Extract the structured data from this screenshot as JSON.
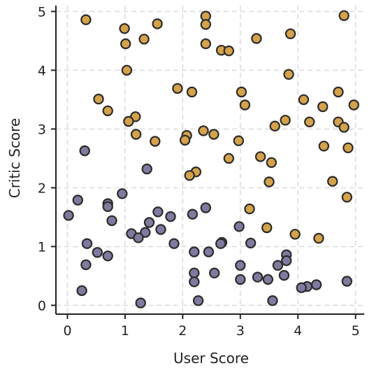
{
  "chart_data": {
    "type": "scatter",
    "xlabel": "User Score",
    "ylabel": "Critic Score",
    "xlim": [
      -0.2,
      5.15
    ],
    "ylim": [
      -0.15,
      5.1
    ],
    "xticks": [
      0,
      1,
      2,
      3,
      4,
      5
    ],
    "yticks": [
      0,
      1,
      2,
      3,
      4,
      5
    ],
    "grid": true,
    "colors": {
      "high": "#d4a24c",
      "low": "#7f7b9f"
    },
    "series": [
      {
        "color_key": "high",
        "points": [
          [
            0.32,
            4.86
          ],
          [
            0.99,
            4.71
          ],
          [
            1.01,
            4.45
          ],
          [
            1.33,
            4.53
          ],
          [
            1.56,
            4.79
          ],
          [
            2.4,
            4.92
          ],
          [
            2.4,
            4.78
          ],
          [
            2.4,
            4.45
          ],
          [
            2.67,
            4.34
          ],
          [
            2.8,
            4.33
          ],
          [
            3.28,
            4.54
          ],
          [
            3.87,
            4.62
          ],
          [
            4.8,
            4.93
          ],
          [
            1.03,
            4.0
          ],
          [
            3.84,
            3.93
          ],
          [
            1.91,
            3.69
          ],
          [
            2.16,
            3.63
          ],
          [
            3.02,
            3.63
          ],
          [
            4.7,
            3.63
          ],
          [
            0.54,
            3.51
          ],
          [
            4.1,
            3.5
          ],
          [
            3.08,
            3.41
          ],
          [
            4.97,
            3.41
          ],
          [
            4.43,
            3.38
          ],
          [
            0.7,
            3.31
          ],
          [
            1.18,
            3.21
          ],
          [
            1.06,
            3.13
          ],
          [
            3.78,
            3.15
          ],
          [
            4.2,
            3.12
          ],
          [
            4.7,
            3.12
          ],
          [
            3.6,
            3.05
          ],
          [
            4.8,
            3.03
          ],
          [
            2.36,
            2.97
          ],
          [
            2.54,
            2.91
          ],
          [
            1.19,
            2.91
          ],
          [
            2.07,
            2.89
          ],
          [
            2.04,
            2.81
          ],
          [
            1.52,
            2.79
          ],
          [
            2.97,
            2.8
          ],
          [
            4.45,
            2.71
          ],
          [
            4.87,
            2.68
          ],
          [
            3.35,
            2.53
          ],
          [
            2.8,
            2.5
          ],
          [
            3.54,
            2.43
          ],
          [
            2.23,
            2.27
          ],
          [
            2.12,
            2.21
          ],
          [
            3.5,
            2.1
          ],
          [
            4.6,
            2.11
          ],
          [
            4.85,
            1.84
          ],
          [
            3.16,
            1.64
          ],
          [
            3.46,
            1.32
          ],
          [
            3.95,
            1.21
          ],
          [
            4.36,
            1.14
          ]
        ]
      },
      {
        "color_key": "low",
        "points": [
          [
            0.3,
            2.63
          ],
          [
            1.38,
            2.32
          ],
          [
            0.95,
            1.9
          ],
          [
            0.18,
            1.79
          ],
          [
            0.7,
            1.73
          ],
          [
            0.7,
            1.68
          ],
          [
            0.02,
            1.53
          ],
          [
            1.57,
            1.59
          ],
          [
            1.79,
            1.51
          ],
          [
            2.17,
            1.55
          ],
          [
            2.4,
            1.66
          ],
          [
            0.77,
            1.44
          ],
          [
            1.42,
            1.41
          ],
          [
            1.62,
            1.29
          ],
          [
            1.11,
            1.22
          ],
          [
            1.35,
            1.24
          ],
          [
            1.23,
            1.15
          ],
          [
            2.98,
            1.34
          ],
          [
            0.34,
            1.05
          ],
          [
            1.85,
            1.05
          ],
          [
            2.68,
            1.07
          ],
          [
            2.66,
            1.05
          ],
          [
            3.18,
            1.06
          ],
          [
            0.52,
            0.9
          ],
          [
            2.2,
            0.91
          ],
          [
            2.45,
            0.91
          ],
          [
            0.7,
            0.84
          ],
          [
            3.8,
            0.86
          ],
          [
            3.8,
            0.76
          ],
          [
            0.32,
            0.69
          ],
          [
            3.0,
            0.68
          ],
          [
            3.65,
            0.68
          ],
          [
            2.2,
            0.55
          ],
          [
            2.55,
            0.55
          ],
          [
            3.76,
            0.51
          ],
          [
            3.3,
            0.48
          ],
          [
            3.48,
            0.44
          ],
          [
            3.0,
            0.44
          ],
          [
            2.2,
            0.4
          ],
          [
            4.85,
            0.41
          ],
          [
            4.32,
            0.35
          ],
          [
            4.16,
            0.32
          ],
          [
            4.06,
            0.3
          ],
          [
            0.25,
            0.25
          ],
          [
            2.27,
            0.08
          ],
          [
            3.56,
            0.08
          ],
          [
            1.27,
            0.04
          ]
        ]
      }
    ]
  }
}
